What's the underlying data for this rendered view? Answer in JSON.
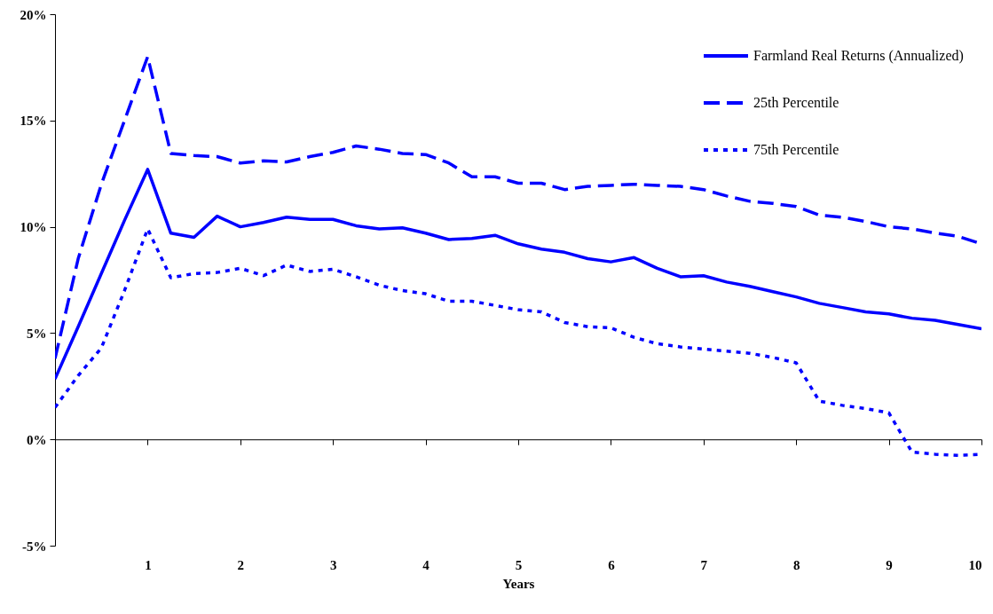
{
  "chart_data": {
    "type": "line",
    "xlabel": "Years",
    "x": [
      0,
      0.25,
      0.5,
      0.75,
      1,
      1.25,
      1.5,
      1.75,
      2,
      2.25,
      2.5,
      2.75,
      3,
      3.25,
      3.5,
      3.75,
      4,
      4.25,
      4.5,
      4.75,
      5,
      5.25,
      5.5,
      5.75,
      6,
      6.25,
      6.5,
      6.75,
      7,
      7.25,
      7.5,
      7.75,
      8,
      8.25,
      8.5,
      8.75,
      9,
      9.25,
      9.5,
      9.75,
      10
    ],
    "series": [
      {
        "name": "Farmland Real Returns (Annualized)",
        "color": "#0000ff",
        "line_style": "solid",
        "values": [
          2.84,
          5.3,
          7.8,
          10.3,
          12.7,
          9.7,
          9.5,
          10.5,
          10.0,
          10.2,
          10.45,
          10.35,
          10.35,
          10.05,
          9.9,
          9.95,
          9.7,
          9.4,
          9.45,
          9.6,
          9.2,
          8.95,
          8.8,
          8.5,
          8.35,
          8.55,
          8.05,
          7.65,
          7.7,
          7.4,
          7.2,
          6.95,
          6.7,
          6.4,
          6.2,
          6.0,
          5.9,
          5.7,
          5.6,
          5.4,
          5.2
        ]
      },
      {
        "name": "25th Percentile",
        "color": "#0000ff",
        "line_style": "dashed",
        "values": [
          3.8,
          8.5,
          12.0,
          15.0,
          18.0,
          13.45,
          13.35,
          13.3,
          13.0,
          13.1,
          13.05,
          13.3,
          13.5,
          13.8,
          13.65,
          13.45,
          13.4,
          13.0,
          12.35,
          12.35,
          12.05,
          12.05,
          11.75,
          11.9,
          11.95,
          12.0,
          11.95,
          11.9,
          11.75,
          11.45,
          11.2,
          11.1,
          10.95,
          10.55,
          10.45,
          10.25,
          10.0,
          9.9,
          9.7,
          9.55,
          9.2
        ]
      },
      {
        "name": "75th Percentile",
        "color": "#0000ff",
        "line_style": "dotted",
        "values": [
          1.5,
          3.0,
          4.3,
          7.0,
          9.9,
          7.6,
          7.8,
          7.85,
          8.05,
          7.7,
          8.2,
          7.9,
          8.0,
          7.65,
          7.25,
          7.0,
          6.85,
          6.5,
          6.5,
          6.3,
          6.1,
          6.0,
          5.5,
          5.3,
          5.25,
          4.8,
          4.5,
          4.35,
          4.25,
          4.15,
          4.05,
          3.85,
          3.6,
          1.8,
          1.6,
          1.45,
          1.25,
          -0.6,
          -0.7,
          -0.75,
          -0.7
        ]
      }
    ],
    "xlim": [
      0,
      10
    ],
    "xticks": [
      1,
      2,
      3,
      4,
      5,
      6,
      7,
      8,
      9,
      10
    ],
    "ylim": [
      -5,
      20
    ],
    "yticks": [
      {
        "value": -5,
        "label": "-5%"
      },
      {
        "value": 0,
        "label": "0%"
      },
      {
        "value": 5,
        "label": "5%"
      },
      {
        "value": 10,
        "label": "10%"
      },
      {
        "value": 15,
        "label": "15%"
      },
      {
        "value": 20,
        "label": "20%"
      }
    ],
    "legend": "top right"
  }
}
